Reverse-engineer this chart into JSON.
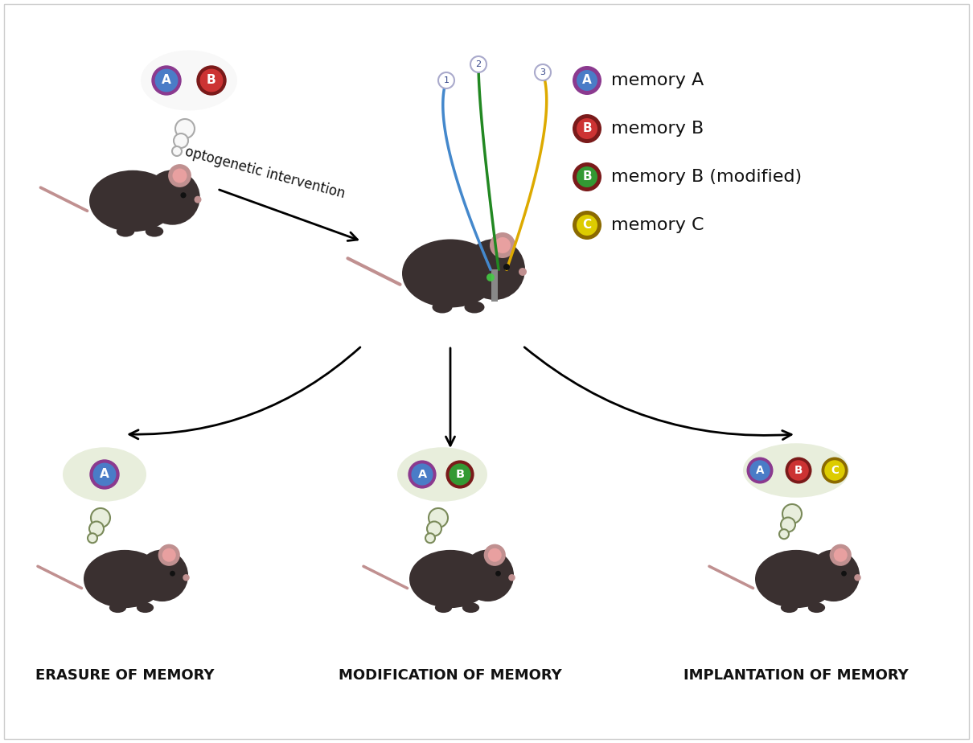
{
  "background_color": "#ffffff",
  "legend_items": [
    {
      "label": "memory A",
      "fill_color": "#4a7cc7",
      "border_color": "#8b3a8f",
      "text": "A"
    },
    {
      "label": "memory B",
      "fill_color": "#cc3333",
      "border_color": "#7a1a1a",
      "text": "B"
    },
    {
      "label": "memory B (modified)",
      "fill_color": "#339933",
      "border_color": "#7a1a1a",
      "text": "B"
    },
    {
      "label": "memory C",
      "fill_color": "#ddcc00",
      "border_color": "#8b6a00",
      "text": "C"
    }
  ],
  "arrow_color": "#111111",
  "thought_cloud_color_white": "#f5f5f5",
  "thought_cloud_border_white": "#aaaaaa",
  "thought_cloud_color_green": "#e8eedc",
  "thought_cloud_border_green": "#7a8a5a",
  "mouse_body_color": "#3a3030",
  "mouse_ear_color": "#c09090",
  "intervention_text": "optogenetic intervention",
  "bottom_labels": [
    "ERASURE OF MEMORY",
    "MODIFICATION OF MEMORY",
    "IMPLANTATION OF MEMORY"
  ],
  "wire_colors": [
    "#4488cc",
    "#228822",
    "#ddaa00"
  ],
  "figsize": [
    12.1,
    9.24
  ],
  "dpi": 100
}
